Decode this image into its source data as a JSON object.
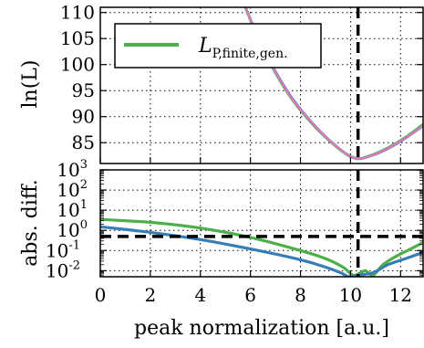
{
  "chart_data": [
    {
      "type": "line",
      "panel": "top",
      "ylabel": "ln(L)",
      "ylim": [
        81,
        111
      ],
      "xlim": [
        0,
        12.9
      ],
      "yticks": [
        "85",
        "90",
        "95",
        "100",
        "105",
        "110"
      ],
      "grid": true,
      "legend": {
        "position": "top-left",
        "label_main": "L",
        "label_sub": "P,finite,gen."
      },
      "vline_x": 10.3,
      "series": [
        {
          "name": "L_P,finite,gen.",
          "color": "#4daf4a",
          "x": [
            5.8,
            6.5,
            7.5,
            8.5,
            9.5,
            10.2,
            10.8,
            11.5,
            12.2,
            12.9
          ],
          "y": [
            111,
            103,
            94.5,
            88.5,
            84,
            82,
            82.5,
            84,
            86,
            88.5
          ]
        },
        {
          "name": "",
          "color": "#377eb8",
          "x": [
            5.8,
            6.5,
            7.5,
            8.5,
            9.5,
            10.2,
            10.8,
            11.5,
            12.2,
            12.9
          ],
          "y": [
            111,
            103.3,
            94.8,
            88.7,
            84.1,
            82,
            82.4,
            83.8,
            85.8,
            88.2
          ]
        },
        {
          "name": "",
          "color": "#e377c2",
          "x": [
            5.8,
            6.5,
            7.5,
            8.5,
            9.5,
            10.2,
            10.8,
            11.5,
            12.2,
            12.9
          ],
          "y": [
            111,
            103.1,
            94.6,
            88.6,
            84.05,
            82,
            82.45,
            83.9,
            85.9,
            88.3
          ]
        }
      ]
    },
    {
      "type": "line",
      "panel": "bottom",
      "ylabel": "abs. diff.",
      "yscale": "log",
      "ylim_log10": [
        -2.3,
        3
      ],
      "xlim": [
        0,
        12.9
      ],
      "xlabel": "peak normalization [a.u.]",
      "xticks": [
        "0",
        "2",
        "4",
        "6",
        "8",
        "10",
        "12"
      ],
      "yticks": [
        "10^3",
        "10^2",
        "10^1",
        "10^0",
        "10^-1",
        "10^-2"
      ],
      "grid": true,
      "hline_y": 0.5,
      "vline_x": 10.3,
      "series": [
        {
          "name": "",
          "color": "#4daf4a",
          "x": [
            0,
            2,
            4,
            6,
            8,
            9,
            9.7,
            10.1,
            10.4,
            10.6,
            10.9,
            11.3,
            11.8,
            12.4,
            12.9
          ],
          "y": [
            3.5,
            2.5,
            1.3,
            0.45,
            0.1,
            0.04,
            0.015,
            0.006,
            0.008,
            0.01,
            0.006,
            0.02,
            0.05,
            0.12,
            0.25
          ]
        },
        {
          "name": "",
          "color": "#377eb8",
          "x": [
            0,
            2,
            4,
            6,
            8,
            9,
            9.6,
            9.95,
            10.3,
            10.9,
            11.5,
            12.2,
            12.9
          ],
          "y": [
            1.5,
            0.8,
            0.35,
            0.12,
            0.035,
            0.015,
            0.008,
            0.005,
            0.006,
            0.008,
            0.02,
            0.04,
            0.08
          ]
        }
      ]
    }
  ]
}
